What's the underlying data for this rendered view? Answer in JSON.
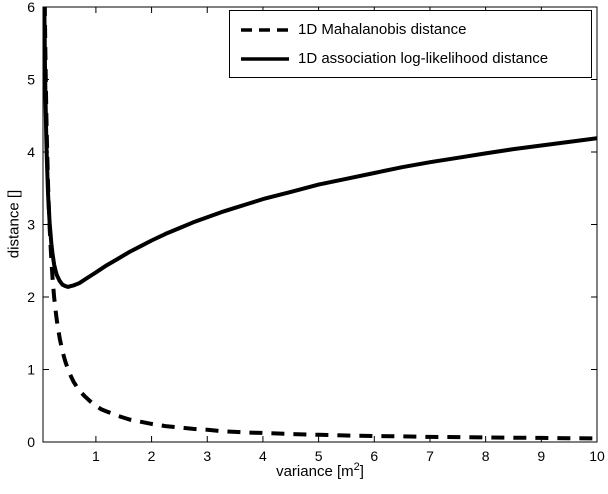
{
  "chart_data": {
    "type": "line",
    "xlabel": "variance [m²]",
    "xlabel_parts": {
      "pre": "variance [m",
      "sup": "2",
      "post": "]"
    },
    "ylabel": "distance []",
    "xlim": [
      0.05,
      10
    ],
    "ylim": [
      0,
      6
    ],
    "x_ticks": [
      1,
      2,
      3,
      4,
      5,
      6,
      7,
      8,
      9,
      10
    ],
    "y_ticks": [
      0,
      1,
      2,
      3,
      4,
      5,
      6
    ],
    "grid": false,
    "legend_position": "north",
    "line_color": "#000000",
    "series": [
      {
        "id": "mahalanobis",
        "name": "1D Mahalanobis distance",
        "style": "dashed",
        "x": [
          0.05,
          0.055,
          0.06,
          0.065,
          0.07,
          0.075,
          0.08,
          0.085,
          0.09,
          0.095,
          0.1,
          0.11,
          0.12,
          0.13,
          0.14,
          0.15,
          0.17,
          0.2,
          0.22,
          0.25,
          0.28,
          0.3,
          0.35,
          0.4,
          0.45,
          0.5,
          0.55,
          0.6,
          0.7,
          0.8,
          0.9,
          1,
          1.1,
          1.2,
          1.4,
          1.6,
          1.8,
          2,
          2.25,
          2.5,
          2.75,
          3,
          3.25,
          3.5,
          3.75,
          4,
          4.5,
          5,
          5.5,
          6,
          6.5,
          7,
          7.5,
          8,
          8.5,
          9,
          9.5,
          10
        ],
        "y": [
          10,
          9.09,
          8.33,
          7.69,
          7.14,
          6.67,
          6.25,
          5.88,
          5.56,
          5.26,
          5,
          4.55,
          4.17,
          3.85,
          3.57,
          3.33,
          2.94,
          2.5,
          2.27,
          2,
          1.79,
          1.67,
          1.43,
          1.25,
          1.11,
          1,
          0.91,
          0.83,
          0.71,
          0.63,
          0.56,
          0.5,
          0.45,
          0.42,
          0.36,
          0.31,
          0.28,
          0.25,
          0.22,
          0.2,
          0.18,
          0.17,
          0.15,
          0.14,
          0.13,
          0.125,
          0.11,
          0.1,
          0.09,
          0.083,
          0.077,
          0.071,
          0.067,
          0.063,
          0.059,
          0.056,
          0.053,
          0.05
        ]
      },
      {
        "id": "log-likelihood",
        "name": "1D association log-likelihood distance",
        "style": "solid",
        "x": [
          0.05,
          0.055,
          0.06,
          0.065,
          0.07,
          0.075,
          0.08,
          0.085,
          0.09,
          0.095,
          0.1,
          0.11,
          0.12,
          0.13,
          0.14,
          0.15,
          0.17,
          0.2,
          0.22,
          0.25,
          0.28,
          0.3,
          0.35,
          0.4,
          0.45,
          0.5,
          0.55,
          0.6,
          0.7,
          0.8,
          0.9,
          1,
          1.1,
          1.2,
          1.4,
          1.6,
          1.8,
          2,
          2.25,
          2.5,
          2.75,
          3,
          3.25,
          3.5,
          3.75,
          4,
          4.5,
          5,
          5.5,
          6,
          6.5,
          7,
          7.5,
          8,
          8.5,
          9,
          9.5,
          10
        ],
        "y": [
          8.84,
          8.03,
          7.36,
          6.8,
          6.32,
          5.91,
          5.56,
          5.26,
          4.99,
          4.75,
          4.54,
          4.18,
          3.88,
          3.64,
          3.44,
          3.27,
          3.01,
          2.73,
          2.6,
          2.45,
          2.35,
          2.3,
          2.22,
          2.17,
          2.15,
          2.14,
          2.15,
          2.16,
          2.19,
          2.24,
          2.29,
          2.34,
          2.39,
          2.44,
          2.53,
          2.62,
          2.7,
          2.78,
          2.87,
          2.95,
          3.03,
          3.1,
          3.17,
          3.23,
          3.29,
          3.35,
          3.45,
          3.55,
          3.63,
          3.71,
          3.79,
          3.86,
          3.92,
          3.98,
          4.04,
          4.09,
          4.14,
          4.19
        ]
      }
    ]
  }
}
